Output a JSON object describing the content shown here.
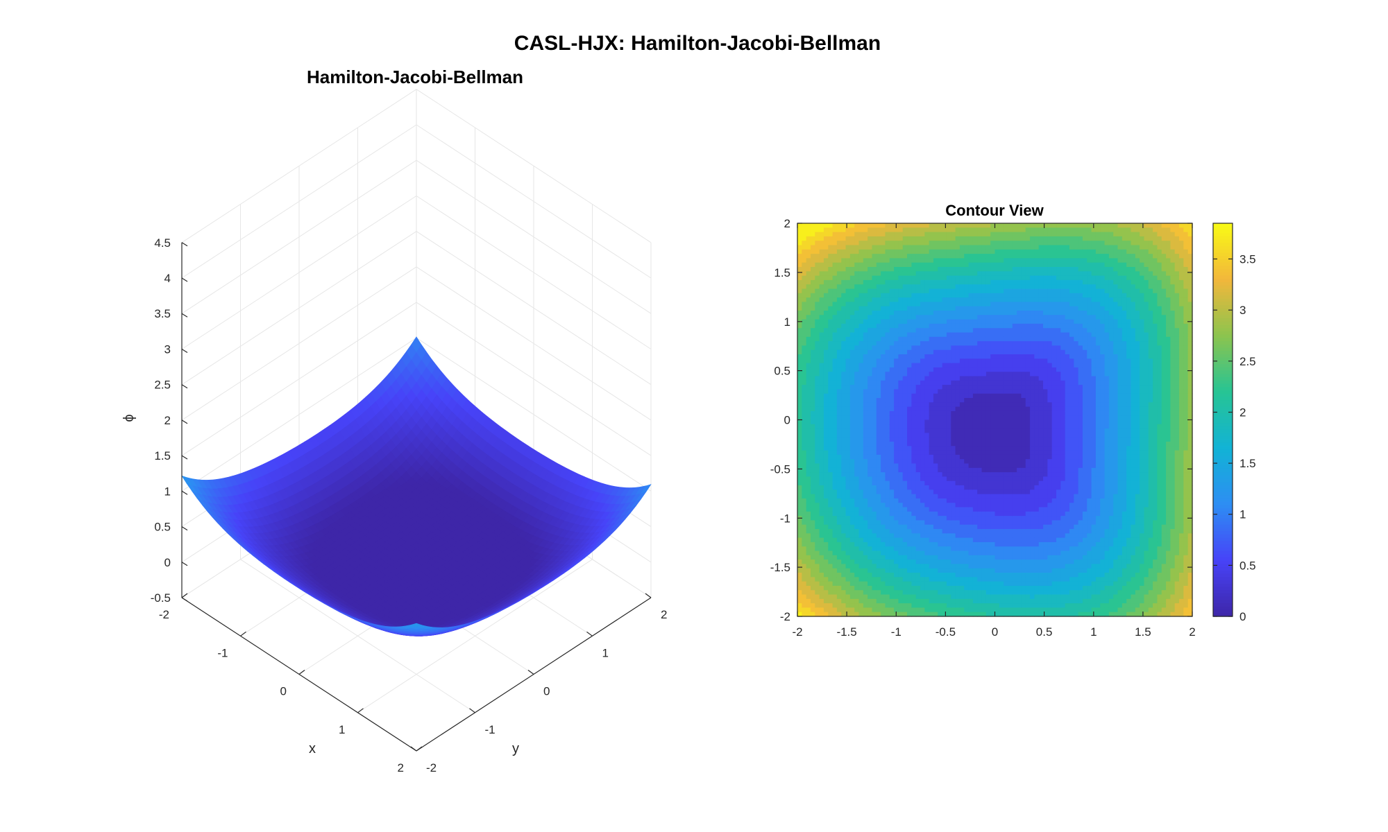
{
  "figure": {
    "suptitle": "CASL-HJX: Hamilton-Jacobi-Bellman"
  },
  "colors": {
    "colormap": [
      "#3e26a8",
      "#4743f8",
      "#2d8ef3",
      "#12b3d5",
      "#27c494",
      "#8cc44e",
      "#f2b73b",
      "#f9fb15"
    ],
    "grid": "#e6e6e6",
    "axis": "#262626"
  },
  "chart_data": [
    {
      "type": "surface",
      "title": "Hamilton-Jacobi-Bellman",
      "xlabel": "x",
      "ylabel": "y",
      "zlabel": "ϕ",
      "xlim": [
        -2,
        2
      ],
      "ylim": [
        -2,
        2
      ],
      "zlim": [
        -0.5,
        4.5
      ],
      "x_ticks": [
        "-2",
        "-1",
        "0",
        "1",
        "2"
      ],
      "y_ticks": [
        "-2",
        "-1",
        "0",
        "1",
        "2"
      ],
      "z_ticks": [
        "-0.5",
        "0",
        "0.5",
        "1",
        "1.5",
        "2",
        "2.5",
        "3",
        "3.5",
        "4",
        "4.5"
      ],
      "z_min": 0,
      "z_max": 3.85,
      "grid": true
    },
    {
      "type": "contour",
      "title": "Contour View",
      "xlim": [
        -2,
        2
      ],
      "ylim": [
        -2,
        2
      ],
      "x_ticks": [
        "-2",
        "-1.5",
        "-1",
        "-0.5",
        "0",
        "0.5",
        "1",
        "1.5",
        "2"
      ],
      "y_ticks": [
        "2",
        "1.5",
        "1",
        "0.5",
        "0",
        "-0.5",
        "-1",
        "-1.5",
        "-2"
      ],
      "levels": 20,
      "minimum_at": [
        0,
        -0.1
      ],
      "colorbar": {
        "range": [
          0,
          3.85
        ],
        "ticks": [
          "0",
          "0.5",
          "1",
          "1.5",
          "2",
          "2.5",
          "3",
          "3.5"
        ],
        "placement": "right"
      }
    }
  ]
}
